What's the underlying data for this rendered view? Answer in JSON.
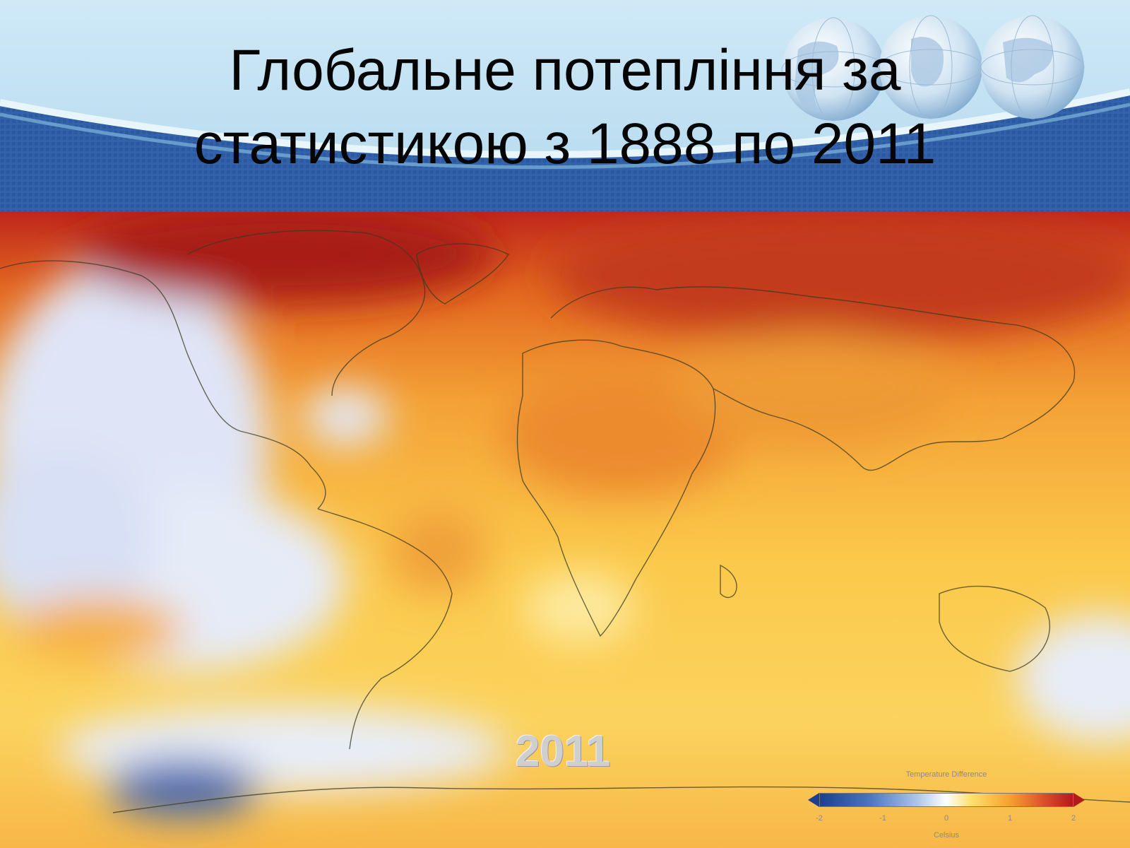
{
  "slide": {
    "title_line1": "Глобальне потепління за",
    "title_line2": "статистикою з 1888 по 2011"
  },
  "map": {
    "year": "2011",
    "legend": {
      "title": "Temperature Difference",
      "ticks": [
        "-2",
        "-1",
        "0",
        "1",
        "2"
      ],
      "unit": "Celsius"
    }
  },
  "colors": {
    "header_blue": "#2d5a9e",
    "header_sky": "#bfe0f2",
    "map_red": "#b7211b",
    "map_orange": "#ef9a2c",
    "map_yellow": "#fbd65a",
    "map_cold": "#dfe6f7",
    "map_deep_cold": "#3f63ad"
  },
  "icons": [
    "globe-icon",
    "globe-icon",
    "globe-icon"
  ]
}
